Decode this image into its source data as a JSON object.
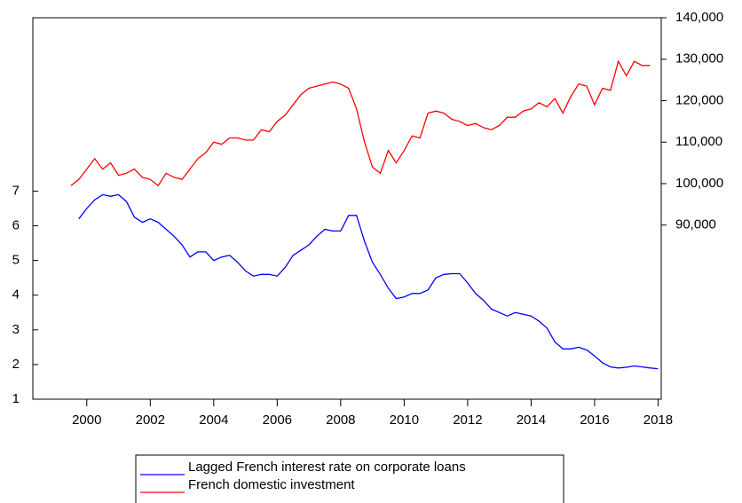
{
  "chart_data": {
    "type": "line",
    "x": [
      1999.5,
      1999.75,
      2000,
      2000.25,
      2000.5,
      2000.75,
      2001,
      2001.25,
      2001.5,
      2001.75,
      2002,
      2002.25,
      2002.5,
      2002.75,
      2003,
      2003.25,
      2003.5,
      2003.75,
      2004,
      2004.25,
      2004.5,
      2004.75,
      2005,
      2005.25,
      2005.5,
      2005.75,
      2006,
      2006.25,
      2006.5,
      2006.75,
      2007,
      2007.25,
      2007.5,
      2007.75,
      2008,
      2008.25,
      2008.5,
      2008.75,
      2009,
      2009.25,
      2009.5,
      2009.75,
      2010,
      2010.25,
      2010.5,
      2010.75,
      2011,
      2011.25,
      2011.5,
      2011.75,
      2012,
      2012.25,
      2012.5,
      2012.75,
      2013,
      2013.25,
      2013.5,
      2013.75,
      2014,
      2014.25,
      2014.5,
      2014.75,
      2015,
      2015.25,
      2015.5,
      2015.75,
      2016,
      2016.25,
      2016.5,
      2016.75,
      2017,
      2017.25,
      2017.5,
      2017.75,
      2018
    ],
    "xlim": [
      1998.3,
      2018.1
    ],
    "xticks": [
      2000,
      2002,
      2004,
      2006,
      2008,
      2010,
      2012,
      2014,
      2016,
      2018
    ],
    "ylim": [
      1,
      12
    ],
    "yticks": [
      1,
      2,
      3,
      4,
      5,
      6,
      7
    ],
    "y2lim": [
      48000,
      140000
    ],
    "y2ticks": [
      {
        "value": 90000,
        "label": "90,000"
      },
      {
        "value": 100000,
        "label": "100,000"
      },
      {
        "value": 110000,
        "label": "110,000"
      },
      {
        "value": 120000,
        "label": "120,000"
      },
      {
        "value": 130000,
        "label": "130,000"
      },
      {
        "value": 140000,
        "label": "140,000"
      }
    ],
    "series": [
      {
        "name": "Lagged French interest rate on corporate loans",
        "color": "#0000ff",
        "values": [
          null,
          6.2,
          6.5,
          6.75,
          6.9,
          6.85,
          6.9,
          6.7,
          6.25,
          6.1,
          6.2,
          6.1,
          5.9,
          5.7,
          5.45,
          5.1,
          5.25,
          5.25,
          5.0,
          5.1,
          5.15,
          4.95,
          4.7,
          4.55,
          4.6,
          4.6,
          4.55,
          4.8,
          5.15,
          5.3,
          5.45,
          5.7,
          5.9,
          5.85,
          5.85,
          6.3,
          6.3,
          5.55,
          4.95,
          4.6,
          4.2,
          3.9,
          3.95,
          4.05,
          4.05,
          4.15,
          4.5,
          4.6,
          4.62,
          4.62,
          4.35,
          4.05,
          3.85,
          3.6,
          3.5,
          3.4,
          3.5,
          3.45,
          3.4,
          3.25,
          3.05,
          2.65,
          2.45,
          2.45,
          2.5,
          2.42,
          2.25,
          2.05,
          1.93,
          1.9,
          1.92,
          1.96,
          1.93,
          1.9,
          1.88
        ]
      },
      {
        "name": "French domestic investment",
        "color": "#ff0000",
        "axis": "y2",
        "values": [
          99500,
          101000,
          103500,
          106000,
          103500,
          105000,
          102000,
          102500,
          103500,
          101500,
          101000,
          99500,
          102500,
          101500,
          101000,
          103500,
          106000,
          107500,
          110000,
          109500,
          111000,
          111000,
          110500,
          110500,
          113000,
          112500,
          115000,
          116500,
          119000,
          121500,
          123000,
          123500,
          124000,
          124500,
          124000,
          123000,
          118000,
          110000,
          104000,
          102500,
          108000,
          105000,
          108000,
          111500,
          111000,
          117000,
          117500,
          117000,
          115500,
          115000,
          114000,
          114500,
          113500,
          113000,
          114000,
          116000,
          116000,
          117500,
          118000,
          119500,
          118500,
          120500,
          117000,
          121000,
          124000,
          123500,
          119000,
          123000,
          122500,
          129500,
          126000,
          129500,
          128500,
          128500,
          null
        ]
      }
    ]
  }
}
